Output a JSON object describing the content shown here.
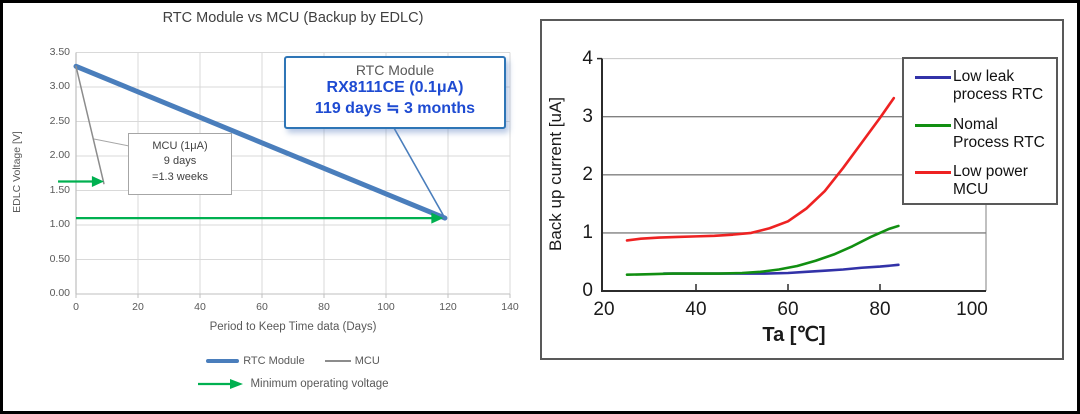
{
  "colors": {
    "rtc_blue": "#4a7ebc",
    "mcu_gray": "#8c8c8c",
    "green": "#00b050",
    "callout_border": "#2e75b6",
    "callout_text": "#1e4bd2",
    "title_gray": "#404040",
    "label_gray": "#595959",
    "grid_light": "#d9d9d9",
    "axis_light": "#bfbfbf",
    "panel_border": "#595959",
    "right_grid": "#808080",
    "right_grid_top": "#c6c6c6",
    "right_axis": "#2b2b2b",
    "leader_gray": "#a6a6a6"
  },
  "chart_data": [
    {
      "type": "line",
      "title": "RTC Module vs MCU (Backup by EDLC)",
      "xlabel": "Period to Keep Time data (Days)",
      "ylabel": "EDLC Voltage [V]",
      "xlim": [
        0,
        140
      ],
      "ylim": [
        0,
        3.5
      ],
      "x_ticks": [
        0,
        20,
        40,
        60,
        80,
        100,
        120,
        140
      ],
      "y_ticks": [
        0,
        0.5,
        1,
        1.5,
        2,
        2.5,
        3,
        3.5
      ],
      "y_tick_labels": [
        "0.00",
        "0.50",
        "1.00",
        "1.50",
        "2.00",
        "2.50",
        "3.00",
        "3.50"
      ],
      "grid": true,
      "legend_position": "bottom",
      "series": [
        {
          "name": "RTC Module",
          "color": "#4a7ebc",
          "width": 5,
          "points": [
            [
              0,
              3.3
            ],
            [
              119,
              1.1
            ]
          ]
        },
        {
          "name": "MCU",
          "color": "#8c8c8c",
          "width": 1.5,
          "points": [
            [
              0,
              3.3
            ],
            [
              9,
              1.6
            ]
          ]
        }
      ],
      "arrows": [
        {
          "name": "mcu-minimum-voltage-arrow",
          "y": 1.63,
          "x_from": -5.8,
          "x_to": 9
        },
        {
          "name": "rtc-minimum-voltage-arrow",
          "y": 1.1,
          "x_from": 0,
          "x_to": 118.5
        }
      ],
      "annotations": {
        "mcu_note": {
          "lines": [
            "MCU (1μA)",
            "9 days",
            "=1.3 weeks"
          ]
        },
        "rtc_callout": {
          "lines": [
            "RTC Module",
            "RX8111CE (0.1μA)",
            "119 days ≒ 3 months"
          ]
        }
      },
      "legend": {
        "rtc_label": "RTC Module",
        "mcu_label": "MCU",
        "min_voltage_label": "Minimum operating voltage"
      }
    },
    {
      "type": "line",
      "title": "",
      "xlabel": "Ta [℃]",
      "ylabel": "Back up current [uA]",
      "xlim": [
        20,
        103
      ],
      "ylim": [
        0,
        4
      ],
      "x_ticks": [
        20,
        40,
        60,
        80,
        100
      ],
      "y_ticks": [
        0,
        1,
        2,
        3,
        4
      ],
      "grid": true,
      "legend_position": "top-right",
      "series": [
        {
          "name": "Low leak process RTC",
          "label_lines": [
            "Low leak",
            "process RTC"
          ],
          "color": "#3232a8",
          "points": [
            [
              33,
              0.3
            ],
            [
              40,
              0.3
            ],
            [
              45,
              0.3
            ],
            [
              50,
              0.3
            ],
            [
              55,
              0.3
            ],
            [
              60,
              0.31
            ],
            [
              64,
              0.33
            ],
            [
              68,
              0.35
            ],
            [
              72,
              0.37
            ],
            [
              76,
              0.4
            ],
            [
              80,
              0.42
            ],
            [
              84,
              0.45
            ]
          ]
        },
        {
          "name": "Nomal Process RTC",
          "label_lines": [
            "Nomal",
            "Process RTC"
          ],
          "color": "#118f11",
          "points": [
            [
              25,
              0.28
            ],
            [
              30,
              0.29
            ],
            [
              35,
              0.3
            ],
            [
              40,
              0.3
            ],
            [
              45,
              0.3
            ],
            [
              50,
              0.31
            ],
            [
              54,
              0.33
            ],
            [
              58,
              0.37
            ],
            [
              62,
              0.43
            ],
            [
              66,
              0.52
            ],
            [
              70,
              0.63
            ],
            [
              74,
              0.77
            ],
            [
              78,
              0.93
            ],
            [
              82,
              1.07
            ],
            [
              84,
              1.12
            ]
          ]
        },
        {
          "name": "Low power MCU",
          "label_lines": [
            "Low power",
            "MCU"
          ],
          "color": "#ee2222",
          "points": [
            [
              25,
              0.87
            ],
            [
              28,
              0.9
            ],
            [
              32,
              0.92
            ],
            [
              36,
              0.93
            ],
            [
              40,
              0.94
            ],
            [
              44,
              0.95
            ],
            [
              48,
              0.97
            ],
            [
              52,
              1.0
            ],
            [
              56,
              1.08
            ],
            [
              60,
              1.2
            ],
            [
              64,
              1.42
            ],
            [
              68,
              1.72
            ],
            [
              72,
              2.12
            ],
            [
              76,
              2.55
            ],
            [
              80,
              2.98
            ],
            [
              83,
              3.32
            ]
          ]
        }
      ]
    }
  ]
}
